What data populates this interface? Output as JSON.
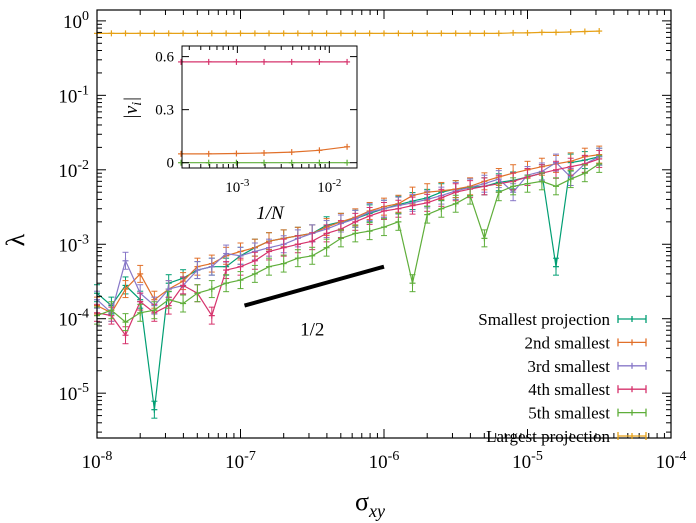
{
  "chart_data": [
    {
      "type": "line",
      "xlabel_base": "σ",
      "xlabel_sub": "xy",
      "ylabel": "λ",
      "xscale": "log",
      "yscale": "log",
      "xlim": [
        1e-08,
        0.0001
      ],
      "ylim": [
        2.5e-06,
        1.4
      ],
      "x_ticks": [
        {
          "value": 1e-08,
          "base": "10",
          "exp": "-8"
        },
        {
          "value": 1e-07,
          "base": "10",
          "exp": "-7"
        },
        {
          "value": 1e-06,
          "base": "10",
          "exp": "-6"
        },
        {
          "value": 1e-05,
          "base": "10",
          "exp": "-5"
        },
        {
          "value": 0.0001,
          "base": "10",
          "exp": "-4"
        }
      ],
      "y_ticks": [
        {
          "value": 1e-05,
          "base": "10",
          "exp": "-5"
        },
        {
          "value": 0.0001,
          "base": "10",
          "exp": "-4"
        },
        {
          "value": 0.001,
          "base": "10",
          "exp": "-3"
        },
        {
          "value": 0.01,
          "base": "10",
          "exp": "-2"
        },
        {
          "value": 0.1,
          "base": "10",
          "exp": "-1"
        },
        {
          "value": 1,
          "base": "10",
          "exp": "0"
        }
      ],
      "legend_position": "bottom-right",
      "series": [
        {
          "name": "Smallest projection",
          "color": "#009e73",
          "x": [
            1e-08,
            1.26e-08,
            1.58e-08,
            2e-08,
            2.51e-08,
            3.16e-08,
            3.98e-08,
            5.01e-08,
            6.31e-08,
            7.94e-08,
            1e-07,
            1.26e-07,
            1.58e-07,
            2e-07,
            2.51e-07,
            3.16e-07,
            3.98e-07,
            5.01e-07,
            6.31e-07,
            7.94e-07,
            1e-06,
            1.26e-06,
            1.58e-06,
            2e-06,
            2.51e-06,
            3.16e-06,
            3.98e-06,
            5.01e-06,
            6.31e-06,
            7.94e-06,
            1e-05,
            1.26e-05,
            1.58e-05,
            2e-05,
            2.51e-05,
            3.16e-05
          ],
          "y": [
            0.00022,
            0.00015,
            0.00028,
            0.00018,
            6e-06,
            0.0003,
            0.00035,
            0.00045,
            0.0005,
            0.0005,
            0.0007,
            0.0009,
            0.0011,
            0.0012,
            0.0013,
            0.0014,
            0.0018,
            0.002,
            0.0022,
            0.0026,
            0.003,
            0.0034,
            0.0038,
            0.0042,
            0.005,
            0.0055,
            0.0058,
            0.006,
            0.0068,
            0.0072,
            0.008,
            0.009,
            0.0005,
            0.0125,
            0.0135,
            0.015
          ]
        },
        {
          "name": "2nd smallest",
          "color": "#e1702a",
          "x": [
            1e-08,
            1.26e-08,
            1.58e-08,
            2e-08,
            2.51e-08,
            3.16e-08,
            3.98e-08,
            5.01e-08,
            6.31e-08,
            7.94e-08,
            1e-07,
            1.26e-07,
            1.58e-07,
            2e-07,
            2.51e-07,
            3.16e-07,
            3.98e-07,
            5.01e-07,
            6.31e-07,
            7.94e-07,
            1e-06,
            1.26e-06,
            1.58e-06,
            2e-06,
            2.51e-06,
            3.16e-06,
            3.98e-06,
            5.01e-06,
            6.31e-06,
            7.94e-06,
            1e-05,
            1.26e-05,
            1.58e-05,
            2e-05,
            2.51e-05,
            3.16e-05
          ],
          "y": [
            0.00015,
            0.00012,
            0.00025,
            0.0004,
            0.00018,
            0.00025,
            0.00032,
            0.0005,
            0.00055,
            0.0007,
            0.0008,
            0.0009,
            0.0011,
            0.0012,
            0.0013,
            0.0014,
            0.0017,
            0.002,
            0.0023,
            0.0028,
            0.0032,
            0.0035,
            0.0045,
            0.005,
            0.0052,
            0.0055,
            0.006,
            0.007,
            0.008,
            0.009,
            0.01,
            0.011,
            0.012,
            0.013,
            0.015,
            0.016
          ]
        },
        {
          "name": "3rd smallest",
          "color": "#8878c8",
          "x": [
            1e-08,
            1.26e-08,
            1.58e-08,
            2e-08,
            2.51e-08,
            3.16e-08,
            3.98e-08,
            5.01e-08,
            6.31e-08,
            7.94e-08,
            1e-07,
            1.26e-07,
            1.58e-07,
            2e-07,
            2.51e-07,
            3.16e-07,
            3.98e-07,
            5.01e-07,
            6.31e-07,
            7.94e-07,
            1e-06,
            1.26e-06,
            1.58e-06,
            2e-06,
            2.51e-06,
            3.16e-06,
            3.98e-06,
            5.01e-06,
            6.31e-06,
            7.94e-06,
            1e-05,
            1.26e-05,
            1.58e-05,
            2e-05,
            2.51e-05,
            3.16e-05
          ],
          "y": [
            0.00018,
            0.00012,
            0.0006,
            0.00022,
            0.00015,
            0.00025,
            0.00028,
            0.00045,
            0.0005,
            0.00075,
            0.0007,
            0.0008,
            0.0009,
            0.001,
            0.0012,
            0.0014,
            0.0016,
            0.0019,
            0.0022,
            0.0027,
            0.003,
            0.0033,
            0.0036,
            0.004,
            0.0045,
            0.0052,
            0.0058,
            0.0065,
            0.0075,
            0.005,
            0.0085,
            0.0095,
            0.0125,
            0.008,
            0.012,
            0.015
          ]
        },
        {
          "name": "4th smallest",
          "color": "#d6336c",
          "x": [
            1e-08,
            1.26e-08,
            1.58e-08,
            2e-08,
            2.51e-08,
            3.16e-08,
            3.98e-08,
            5.01e-08,
            6.31e-08,
            7.94e-08,
            1e-07,
            1.26e-07,
            1.58e-07,
            2e-07,
            2.51e-07,
            3.16e-07,
            3.98e-07,
            5.01e-07,
            6.31e-07,
            7.94e-07,
            1e-06,
            1.26e-06,
            1.58e-06,
            2e-06,
            2.51e-06,
            3.16e-06,
            3.98e-06,
            5.01e-06,
            6.31e-06,
            7.94e-06,
            1e-05,
            1.26e-05,
            1.58e-05,
            2e-05,
            2.51e-05,
            3.16e-05
          ],
          "y": [
            0.00012,
            0.00011,
            6e-05,
            0.00017,
            0.00012,
            0.00015,
            0.00028,
            0.00022,
            0.00011,
            0.00045,
            0.0005,
            0.0006,
            0.0008,
            0.0009,
            0.001,
            0.0011,
            0.0014,
            0.0016,
            0.002,
            0.0024,
            0.0028,
            0.003,
            0.0033,
            0.0036,
            0.0042,
            0.005,
            0.0055,
            0.006,
            0.0065,
            0.007,
            0.008,
            0.009,
            0.01,
            0.011,
            0.012,
            0.014
          ]
        },
        {
          "name": "5th smallest",
          "color": "#5fae3a",
          "x": [
            1e-08,
            1.26e-08,
            1.58e-08,
            2e-08,
            2.51e-08,
            3.16e-08,
            3.98e-08,
            5.01e-08,
            6.31e-08,
            7.94e-08,
            1e-07,
            1.26e-07,
            1.58e-07,
            2e-07,
            2.51e-07,
            3.16e-07,
            3.98e-07,
            5.01e-07,
            6.31e-07,
            7.94e-07,
            1e-06,
            1.26e-06,
            1.58e-06,
            2e-06,
            2.51e-06,
            3.16e-06,
            3.98e-06,
            5.01e-06,
            6.31e-06,
            7.94e-06,
            1e-05,
            1.26e-05,
            1.58e-05,
            2e-05,
            2.51e-05,
            3.16e-05
          ],
          "y": [
            0.00011,
            0.00013,
            9e-05,
            0.00012,
            0.00013,
            0.00018,
            0.00016,
            0.00022,
            0.00025,
            0.0003,
            0.00033,
            0.0004,
            0.0005,
            0.00055,
            0.00065,
            0.0007,
            0.0009,
            0.0012,
            0.0014,
            0.0015,
            0.0017,
            0.002,
            0.0003,
            0.0025,
            0.003,
            0.0035,
            0.0045,
            0.0012,
            0.005,
            0.006,
            0.0065,
            0.007,
            0.006,
            0.0075,
            0.009,
            0.012
          ]
        },
        {
          "name": "Largest projection",
          "color": "#e6a117",
          "x": [
            1e-08,
            1.26e-08,
            1.58e-08,
            2e-08,
            2.51e-08,
            3.16e-08,
            3.98e-08,
            5.01e-08,
            6.31e-08,
            7.94e-08,
            1e-07,
            1.26e-07,
            1.58e-07,
            2e-07,
            2.51e-07,
            3.16e-07,
            3.98e-07,
            5.01e-07,
            6.31e-07,
            7.94e-07,
            1e-06,
            1.26e-06,
            1.58e-06,
            2e-06,
            2.51e-06,
            3.16e-06,
            3.98e-06,
            5.01e-06,
            6.31e-06,
            7.94e-06,
            1e-05,
            1.26e-05,
            1.58e-05,
            2e-05,
            2.51e-05,
            3.16e-05
          ],
          "y": [
            0.68,
            0.68,
            0.68,
            0.68,
            0.68,
            0.68,
            0.68,
            0.68,
            0.68,
            0.68,
            0.68,
            0.68,
            0.68,
            0.68,
            0.68,
            0.68,
            0.68,
            0.68,
            0.68,
            0.68,
            0.68,
            0.68,
            0.68,
            0.68,
            0.68,
            0.68,
            0.68,
            0.68,
            0.68,
            0.69,
            0.69,
            0.7,
            0.7,
            0.71,
            0.72,
            0.73
          ]
        }
      ],
      "annotation": {
        "text": "1/2",
        "line_x": [
          1e-07,
          1e-06
        ],
        "line_y": [
          0.00015,
          0.0005
        ]
      }
    },
    {
      "type": "line",
      "xlabel": "1/N",
      "ylabel_base": "|v",
      "ylabel_sub": "i",
      "ylabel_end": "|",
      "xscale": "log",
      "yscale": "linear",
      "xlim": [
        0.00025,
        0.02
      ],
      "ylim": [
        -0.03,
        0.66
      ],
      "x_ticks": [
        {
          "value": 0.001,
          "base": "10",
          "exp": "-3"
        },
        {
          "value": 0.01,
          "base": "10",
          "exp": "-2"
        }
      ],
      "y_ticks": [
        {
          "value": 0,
          "label": "0"
        },
        {
          "value": 0.3,
          "label": "0.3"
        },
        {
          "value": 0.6,
          "label": "0.6"
        }
      ],
      "series": [
        {
          "color": "#d6336c",
          "x": [
            0.000244,
            0.000488,
            0.000977,
            0.00195,
            0.0039,
            0.0078,
            0.0156
          ],
          "y": [
            0.57,
            0.57,
            0.57,
            0.57,
            0.57,
            0.57,
            0.57
          ]
        },
        {
          "color": "#e1702a",
          "x": [
            0.000244,
            0.000488,
            0.000977,
            0.00195,
            0.0039,
            0.0078,
            0.0156
          ],
          "y": [
            0.05,
            0.05,
            0.052,
            0.055,
            0.06,
            0.07,
            0.09
          ]
        },
        {
          "color": "#5fae3a",
          "x": [
            0.000244,
            0.000488,
            0.000977,
            0.00195,
            0.0039,
            0.0078,
            0.0156
          ],
          "y": [
            0.0,
            0.0,
            0.0,
            0.0,
            0.0,
            0.0,
            0.0
          ]
        }
      ]
    }
  ]
}
